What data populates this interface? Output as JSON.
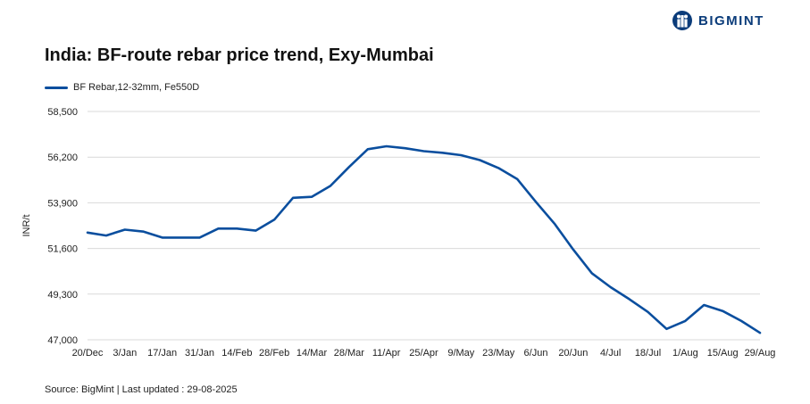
{
  "brand": {
    "name": "BIGMINT",
    "logo_icon": "bigmint-logo-icon",
    "color": "#0b3c7a"
  },
  "chart_data": {
    "type": "line",
    "title": "India: BF-route rebar price trend, Exy-Mumbai",
    "ylabel": "INR/t",
    "xlabel": "",
    "ylim": [
      47000,
      58500
    ],
    "yticks": [
      47000,
      49300,
      51600,
      53900,
      56200,
      58500
    ],
    "ytick_labels": [
      "47,000",
      "49,300",
      "51,600",
      "53,900",
      "56,200",
      "58,500"
    ],
    "xtick_labels": [
      "20/Dec",
      "3/Jan",
      "17/Jan",
      "31/Jan",
      "14/Feb",
      "28/Feb",
      "14/Mar",
      "28/Mar",
      "11/Apr",
      "25/Apr",
      "9/May",
      "23/May",
      "6/Jun",
      "20/Jun",
      "4/Jul",
      "18/Jul",
      "1/Aug",
      "15/Aug",
      "29/Aug"
    ],
    "grid": "horizontal",
    "legend_position": "top-left",
    "series": [
      {
        "name": "BF Rebar,12-32mm, Fe550D",
        "color": "#0a4e9e",
        "x": [
          "20/Dec",
          "27/Dec",
          "3/Jan",
          "10/Jan",
          "17/Jan",
          "24/Jan",
          "31/Jan",
          "7/Feb",
          "14/Feb",
          "21/Feb",
          "28/Feb",
          "7/Mar",
          "14/Mar",
          "21/Mar",
          "28/Mar",
          "4/Apr",
          "11/Apr",
          "18/Apr",
          "25/Apr",
          "2/May",
          "9/May",
          "16/May",
          "23/May",
          "30/May",
          "6/Jun",
          "13/Jun",
          "20/Jun",
          "27/Jun",
          "4/Jul",
          "11/Jul",
          "18/Jul",
          "25/Jul",
          "1/Aug",
          "8/Aug",
          "15/Aug",
          "22/Aug",
          "29/Aug"
        ],
        "values": [
          52400,
          52250,
          52550,
          52450,
          52150,
          52150,
          52150,
          52600,
          52600,
          52500,
          53050,
          54150,
          54200,
          54750,
          55700,
          56600,
          56750,
          56650,
          56500,
          56420,
          56300,
          56050,
          55650,
          55100,
          53950,
          52850,
          51550,
          50350,
          49650,
          49050,
          48400,
          47550,
          47950,
          48750,
          48450,
          47950,
          47350
        ]
      }
    ]
  },
  "footer": {
    "source": "Source: BigMint | Last updated : 29-08-2025"
  }
}
